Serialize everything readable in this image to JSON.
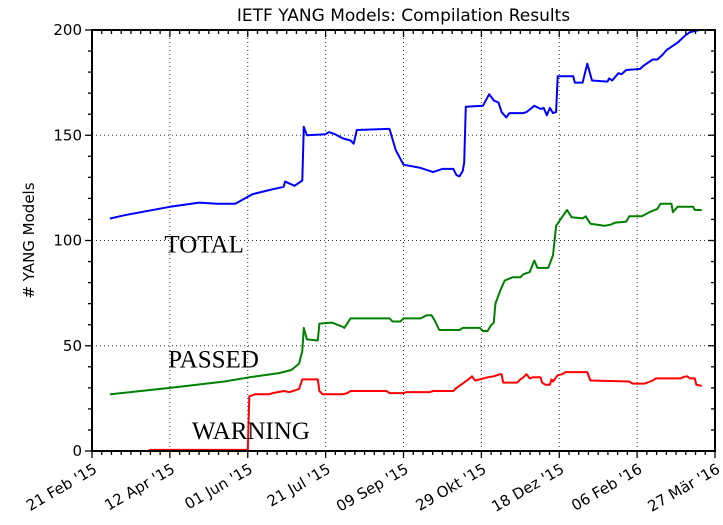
{
  "figure": {
    "background": "#ffffff",
    "frame_color": "#000000",
    "grid_color": "#333333"
  },
  "chart_data": {
    "type": "line",
    "title": "IETF YANG Models: Compilation Results",
    "xlabel": "",
    "ylabel": "# YANG Models",
    "x_unit": "days since 21 Feb 2015 (major ticks every 50 days)",
    "xlim": [
      0,
      400
    ],
    "ylim": [
      0,
      200
    ],
    "grid": true,
    "legend_position": "inline-labels",
    "yticks": [
      {
        "v": 0,
        "label": "0"
      },
      {
        "v": 50,
        "label": "50"
      },
      {
        "v": 100,
        "label": "100"
      },
      {
        "v": 150,
        "label": "150"
      },
      {
        "v": 200,
        "label": "200"
      }
    ],
    "xticks": [
      {
        "v": 0,
        "label": "21 Feb '15"
      },
      {
        "v": 50,
        "label": "12 Apr '15"
      },
      {
        "v": 100,
        "label": "01 Jun '15"
      },
      {
        "v": 150,
        "label": "21 Jul '15"
      },
      {
        "v": 200,
        "label": "09 Sep '15"
      },
      {
        "v": 250,
        "label": "29 Okt '15"
      },
      {
        "v": 300,
        "label": "18 Dez '15"
      },
      {
        "v": 350,
        "label": "06 Feb '16"
      },
      {
        "v": 400,
        "label": "27 Mär '16"
      }
    ],
    "minor_tick_step_x": 6.25,
    "minor_tick_step_y": 10,
    "series": [
      {
        "name": "TOTAL",
        "color": "#0000ff",
        "label_anchor": {
          "x": 72,
          "y": 98
        },
        "points": [
          [
            12,
            110.5
          ],
          [
            21,
            112
          ],
          [
            50,
            116
          ],
          [
            69,
            118
          ],
          [
            80,
            117.5
          ],
          [
            92,
            117.5
          ],
          [
            103,
            122
          ],
          [
            114,
            124
          ],
          [
            123,
            125.5
          ],
          [
            124,
            128
          ],
          [
            130,
            126
          ],
          [
            135,
            128.5
          ],
          [
            136,
            154
          ],
          [
            138,
            150
          ],
          [
            150,
            150.5
          ],
          [
            152,
            151.5
          ],
          [
            156,
            150.5
          ],
          [
            161,
            148.5
          ],
          [
            166,
            147.5
          ],
          [
            168,
            146
          ],
          [
            170,
            152.5
          ],
          [
            191,
            153
          ],
          [
            195,
            143
          ],
          [
            200,
            136
          ],
          [
            211,
            134.5
          ],
          [
            219,
            132.5
          ],
          [
            225,
            134
          ],
          [
            232,
            134
          ],
          [
            234,
            131
          ],
          [
            236,
            130.5
          ],
          [
            238,
            133
          ],
          [
            239,
            137
          ],
          [
            240,
            163.5
          ],
          [
            251,
            164
          ],
          [
            255,
            169.5
          ],
          [
            258,
            166.5
          ],
          [
            261,
            165.5
          ],
          [
            263,
            161
          ],
          [
            266,
            158.5
          ],
          [
            268,
            160.5
          ],
          [
            277,
            160.5
          ],
          [
            279,
            161
          ],
          [
            284,
            164
          ],
          [
            288,
            162.5
          ],
          [
            290,
            163
          ],
          [
            292,
            159.5
          ],
          [
            294,
            163
          ],
          [
            296,
            160.5
          ],
          [
            298,
            161
          ],
          [
            299,
            178
          ],
          [
            309,
            178
          ],
          [
            310,
            175
          ],
          [
            315,
            175
          ],
          [
            318,
            184
          ],
          [
            321,
            176
          ],
          [
            331,
            175.5
          ],
          [
            332,
            177
          ],
          [
            334,
            176
          ],
          [
            338,
            179.5
          ],
          [
            340,
            179
          ],
          [
            343,
            181
          ],
          [
            352,
            181.5
          ],
          [
            354,
            183
          ],
          [
            360,
            186
          ],
          [
            363,
            186
          ],
          [
            366,
            188
          ],
          [
            369,
            190.5
          ],
          [
            372,
            192
          ],
          [
            376,
            194
          ],
          [
            381,
            197.5
          ],
          [
            384,
            199
          ],
          [
            390,
            200
          ],
          [
            400,
            200
          ]
        ]
      },
      {
        "name": "PASSED",
        "color": "#008000",
        "label_anchor": {
          "x": 78,
          "y": 43.5
        },
        "points": [
          [
            12,
            27
          ],
          [
            50,
            30
          ],
          [
            85,
            33
          ],
          [
            101,
            35
          ],
          [
            120,
            37
          ],
          [
            128,
            38.5
          ],
          [
            133,
            41.5
          ],
          [
            135,
            47.5
          ],
          [
            136,
            58.5
          ],
          [
            138,
            53
          ],
          [
            145,
            52.5
          ],
          [
            146,
            60.5
          ],
          [
            154,
            61
          ],
          [
            161,
            59
          ],
          [
            162,
            58.5
          ],
          [
            166,
            63
          ],
          [
            191,
            63
          ],
          [
            193,
            61.5
          ],
          [
            198,
            61.5
          ],
          [
            200,
            63
          ],
          [
            211,
            63
          ],
          [
            215,
            64.5
          ],
          [
            218,
            64.5
          ],
          [
            220,
            62
          ],
          [
            223,
            57.5
          ],
          [
            236,
            57.5
          ],
          [
            238,
            58.5
          ],
          [
            249,
            58.5
          ],
          [
            251,
            57
          ],
          [
            254,
            57
          ],
          [
            256,
            59.5
          ],
          [
            258,
            61
          ],
          [
            259,
            70
          ],
          [
            262,
            76
          ],
          [
            265,
            81
          ],
          [
            270,
            82.5
          ],
          [
            275,
            82.5
          ],
          [
            277,
            84
          ],
          [
            281,
            85
          ],
          [
            284,
            90.5
          ],
          [
            286,
            87
          ],
          [
            293,
            87
          ],
          [
            296,
            93
          ],
          [
            298,
            107
          ],
          [
            305,
            114.5
          ],
          [
            308,
            111
          ],
          [
            315,
            110.5
          ],
          [
            317,
            111.5
          ],
          [
            320,
            108
          ],
          [
            329,
            107
          ],
          [
            333,
            107.5
          ],
          [
            336,
            108.5
          ],
          [
            343,
            109
          ],
          [
            345,
            111.5
          ],
          [
            353,
            111.5
          ],
          [
            358,
            113.5
          ],
          [
            363,
            115
          ],
          [
            365,
            117.5
          ],
          [
            372,
            117.5
          ],
          [
            373,
            113.5
          ],
          [
            376,
            116
          ],
          [
            386,
            116
          ],
          [
            387,
            114.5
          ],
          [
            391,
            114.5
          ]
        ]
      },
      {
        "name": "WARNING",
        "color": "#ff0000",
        "label_anchor": {
          "x": 102,
          "y": 9.5
        },
        "points": [
          [
            37,
            0.5
          ],
          [
            100,
            0.5
          ],
          [
            101,
            26
          ],
          [
            105,
            27
          ],
          [
            114,
            27
          ],
          [
            116,
            27.5
          ],
          [
            123,
            28.5
          ],
          [
            127,
            28
          ],
          [
            133,
            29.5
          ],
          [
            135,
            34
          ],
          [
            145,
            34
          ],
          [
            146,
            28.5
          ],
          [
            148,
            27
          ],
          [
            161,
            27
          ],
          [
            164,
            27.5
          ],
          [
            166,
            28.5
          ],
          [
            189,
            28.5
          ],
          [
            191,
            27.5
          ],
          [
            200,
            27.5
          ],
          [
            202,
            28
          ],
          [
            217,
            28
          ],
          [
            219,
            28.5
          ],
          [
            232,
            28.5
          ],
          [
            234,
            30
          ],
          [
            238,
            32
          ],
          [
            243,
            34.8
          ],
          [
            244,
            35.5
          ],
          [
            246,
            33.5
          ],
          [
            249,
            34
          ],
          [
            254,
            35
          ],
          [
            258,
            35.5
          ],
          [
            262,
            36.5
          ],
          [
            263,
            36.5
          ],
          [
            264,
            32.5
          ],
          [
            273,
            32.5
          ],
          [
            275,
            34
          ],
          [
            277,
            35
          ],
          [
            279,
            36.5
          ],
          [
            281,
            34.5
          ],
          [
            283,
            35
          ],
          [
            288,
            35
          ],
          [
            289,
            32.5
          ],
          [
            291,
            31.5
          ],
          [
            294,
            31.5
          ],
          [
            295,
            34
          ],
          [
            296,
            33
          ],
          [
            299,
            36
          ],
          [
            302,
            36.5
          ],
          [
            304,
            37.5
          ],
          [
            318,
            37.5
          ],
          [
            320,
            33.5
          ],
          [
            345,
            33
          ],
          [
            347,
            32
          ],
          [
            355,
            32
          ],
          [
            360,
            33.5
          ],
          [
            362,
            34.5
          ],
          [
            378,
            34.5
          ],
          [
            380,
            35.2
          ],
          [
            382,
            35.5
          ],
          [
            384,
            34.5
          ],
          [
            387,
            34.5
          ],
          [
            388,
            31.5
          ],
          [
            391,
            31
          ]
        ]
      }
    ]
  }
}
